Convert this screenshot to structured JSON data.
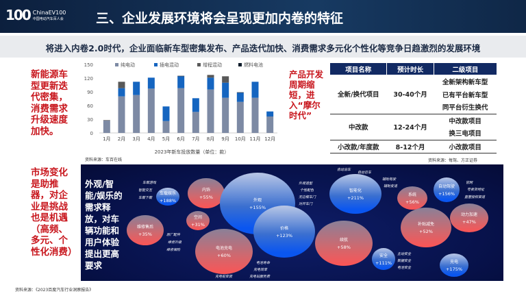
{
  "header": {
    "logo_num": "100",
    "logo_en": "ChinaEV100",
    "logo_cn": "中国电动汽车百人会",
    "title": "三、企业发展环境将会呈现更加内卷的特征"
  },
  "subtitle": "将进入内卷2.0时代，企业面临新车型密集发布、产品迭代加快、消费需求多元化个性化等竞争日趋激烈的发展环境",
  "left_notes": [
    "新能源车型更新迭代密集，消费需求升级速度加快。",
    "市场变化是助推器，对企业是挑战也是机遇（高频、多元、个性化消费）"
  ],
  "chart_data": {
    "type": "bar",
    "stacked": true,
    "xlabel": "2023年新车投放数量（单位：款）",
    "ylim": [
      0,
      150
    ],
    "yticks": [
      0,
      30,
      60,
      90,
      120,
      150
    ],
    "categories": [
      "1月",
      "2月",
      "3月",
      "4月",
      "5月",
      "6月",
      "7月",
      "8月",
      "9月",
      "10月",
      "11月",
      "12月"
    ],
    "series": [
      {
        "name": "纯电动",
        "color": "#7d8aa4",
        "values": [
          27,
          80,
          83,
          97,
          26,
          98,
          46,
          95,
          77,
          68,
          77,
          36
        ]
      },
      {
        "name": "插电混动",
        "color": "#1565c0",
        "values": [
          0,
          18,
          29,
          24,
          32,
          26,
          30,
          26,
          33,
          20,
          35,
          11
        ]
      },
      {
        "name": "增程混动",
        "color": "#595959",
        "values": [
          1,
          14,
          0,
          0,
          0,
          0,
          0,
          6,
          14,
          0,
          0,
          0
        ]
      },
      {
        "name": "燃料电池",
        "color": "#0d1b2a",
        "values": [
          0,
          0,
          0,
          0,
          0,
          1,
          0,
          0,
          0,
          1,
          0,
          0
        ]
      }
    ],
    "legend": "top",
    "grid": false,
    "source": "资料来源：车百在线"
  },
  "cycle_note": "产品开发周期缩短，进入“摩尔时代”",
  "table": {
    "headers": [
      "项目名称",
      "预计时长",
      "二级项目"
    ],
    "rows": [
      {
        "name": "全新/换代项目",
        "time": "30-40个月",
        "items": [
          "全新架构新车型",
          "已有平台新车型",
          "同平台衍生换代"
        ]
      },
      {
        "name": "中改款",
        "time": "12-24个月",
        "items": [
          "中改款项目",
          "换三电项目"
        ]
      },
      {
        "name": "小改款/年度款",
        "time": "8-12个月",
        "items": [
          "小改款项目"
        ]
      }
    ],
    "source": "资料来源：每驾、方正证券"
  },
  "panel": {
    "text": "外观/智能/娱乐的需求释放，对车辆功能和用户体验提出更高要求",
    "bubbles": [
      {
        "label": "车载娱乐",
        "pct": "+188%"
      },
      {
        "label": "内饰",
        "pct": "+55%"
      },
      {
        "label": "外观",
        "pct": "+155%"
      },
      {
        "label": "空间",
        "pct": "+31%"
      },
      {
        "label": "价格",
        "pct": "+123%"
      },
      {
        "label": "维修售后",
        "pct": "+35%"
      },
      {
        "label": "电池充电",
        "pct": "+60%"
      },
      {
        "label": "智能化",
        "pct": "+211%"
      },
      {
        "label": "续航",
        "pct": "+58%"
      },
      {
        "label": "安全",
        "pct": "+111%"
      },
      {
        "label": "系统",
        "pct": "+56%"
      },
      {
        "label": "补贴减免",
        "pct": "+52%"
      },
      {
        "label": "自动驾驶",
        "pct": "+156%"
      },
      {
        "label": "动力加速",
        "pct": "+47%"
      },
      {
        "label": "充电",
        "pct": "+175%"
      }
    ],
    "annotations": [
      "车载游戏",
      "智能交互",
      "车载下载",
      "原厂配件",
      "维修升级",
      "维修保险",
      "外观造型",
      "个性配色",
      "无边框车门",
      "对开车门",
      "电池寿命",
      "充电效率",
      "充电站服务费",
      "充电桩安装",
      "自动泊车",
      "自动召车",
      "辅助驾驶",
      "辅助变道",
      "主动安全",
      "数据安全",
      "电池安全",
      "官网",
      "夸卖货地址",
      "直营授权渠道"
    ]
  },
  "footer_source": "资料来源：《2023百度汽车行业洞察报告》"
}
